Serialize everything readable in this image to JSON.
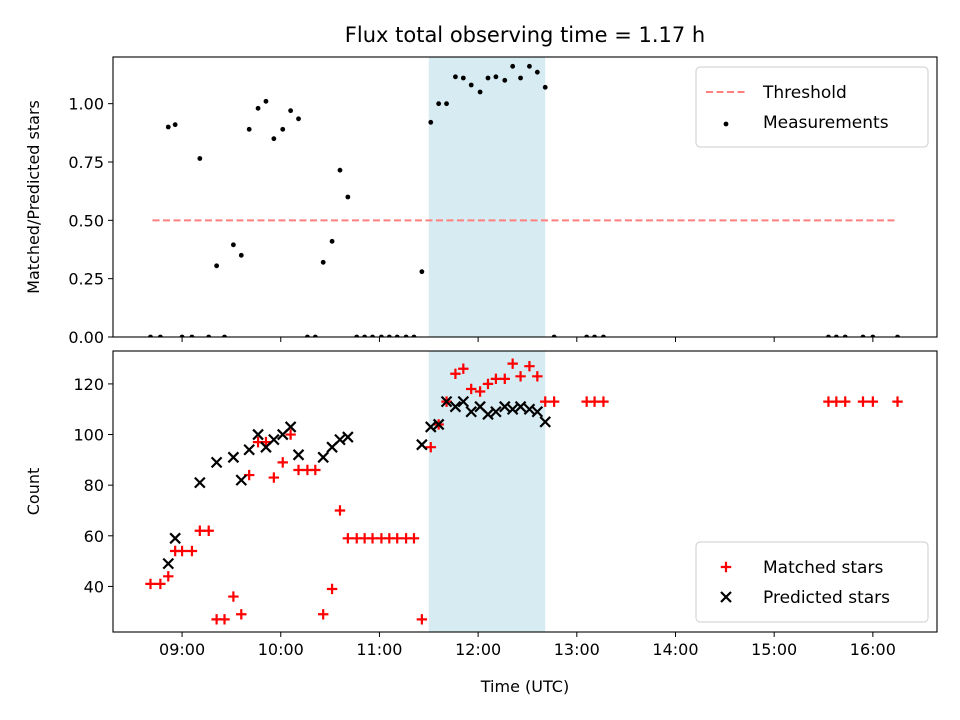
{
  "figure_title": "Flux total observing time = 1.17 h",
  "chart_data": [
    {
      "type": "scatter",
      "panel": "top",
      "title": "Flux total observing time = 1.17 h",
      "ylabel": "Matched/Predicted stars",
      "xlabel": "",
      "xlim": [
        8.3,
        16.65
      ],
      "ylim": [
        0,
        1.2
      ],
      "grid": false,
      "legend_position": "top-right",
      "yticks": [
        0,
        0.25,
        0.5,
        0.75,
        1.0
      ],
      "ytick_labels": [
        "0.00",
        "0.25",
        "0.50",
        "0.75",
        "1.00"
      ],
      "shaded_interval": [
        11.5,
        12.68
      ],
      "shaded_color": "#add8e6",
      "threshold": {
        "name": "Threshold",
        "value": 0.5,
        "x_range": [
          8.7,
          16.25
        ],
        "color": "#ff7f7f",
        "style": "dashed"
      },
      "series": [
        {
          "name": "Measurements",
          "marker": "dot",
          "color": "#000000",
          "points": [
            [
              8.68,
              0
            ],
            [
              8.78,
              0
            ],
            [
              8.86,
              0.9
            ],
            [
              8.93,
              0.91
            ],
            [
              9.0,
              0
            ],
            [
              9.1,
              0
            ],
            [
              9.18,
              0.765
            ],
            [
              9.27,
              0
            ],
            [
              9.35,
              0.305
            ],
            [
              9.43,
              0
            ],
            [
              9.52,
              0.395
            ],
            [
              9.6,
              0.35
            ],
            [
              9.68,
              0.89
            ],
            [
              9.77,
              0.98
            ],
            [
              9.85,
              1.01
            ],
            [
              9.93,
              0.85
            ],
            [
              10.02,
              0.89
            ],
            [
              10.1,
              0.97
            ],
            [
              10.18,
              0.935
            ],
            [
              10.27,
              0
            ],
            [
              10.35,
              0
            ],
            [
              10.43,
              0.32
            ],
            [
              10.52,
              0.41
            ],
            [
              10.6,
              0.715
            ],
            [
              10.68,
              0.6
            ],
            [
              10.77,
              0
            ],
            [
              10.85,
              0
            ],
            [
              10.93,
              0
            ],
            [
              11.02,
              0
            ],
            [
              11.1,
              0
            ],
            [
              11.18,
              0
            ],
            [
              11.27,
              0
            ],
            [
              11.35,
              0
            ],
            [
              11.43,
              0.28
            ],
            [
              11.52,
              0.92
            ],
            [
              11.6,
              1.0
            ],
            [
              11.68,
              1.0
            ],
            [
              11.77,
              1.115
            ],
            [
              11.85,
              1.11
            ],
            [
              11.93,
              1.08
            ],
            [
              12.02,
              1.05
            ],
            [
              12.1,
              1.11
            ],
            [
              12.18,
              1.115
            ],
            [
              12.27,
              1.1
            ],
            [
              12.35,
              1.16
            ],
            [
              12.43,
              1.11
            ],
            [
              12.52,
              1.16
            ],
            [
              12.6,
              1.135
            ],
            [
              12.68,
              1.07
            ],
            [
              12.77,
              0
            ],
            [
              13.1,
              0
            ],
            [
              13.18,
              0
            ],
            [
              13.27,
              0
            ],
            [
              15.55,
              0
            ],
            [
              15.63,
              0
            ],
            [
              15.72,
              0
            ],
            [
              15.9,
              0
            ],
            [
              16.0,
              0
            ],
            [
              16.25,
              0
            ]
          ]
        }
      ]
    },
    {
      "type": "scatter",
      "panel": "bottom",
      "ylabel": "Count",
      "xlabel": "Time (UTC)",
      "xlim": [
        8.3,
        16.65
      ],
      "ylim": [
        22,
        133
      ],
      "grid": false,
      "legend_position": "bottom-right",
      "yticks": [
        40,
        60,
        80,
        100,
        120
      ],
      "ytick_labels": [
        "40",
        "60",
        "80",
        "100",
        "120"
      ],
      "xticks": [
        9,
        10,
        11,
        12,
        13,
        14,
        15,
        16
      ],
      "xtick_labels": [
        "09:00",
        "10:00",
        "11:00",
        "12:00",
        "13:00",
        "14:00",
        "15:00",
        "16:00"
      ],
      "shaded_interval": [
        11.5,
        12.68
      ],
      "shaded_color": "#add8e6",
      "series": [
        {
          "name": "Matched stars",
          "marker": "plus",
          "color": "#ff0000",
          "points": [
            [
              8.68,
              41
            ],
            [
              8.78,
              41
            ],
            [
              8.86,
              44
            ],
            [
              8.93,
              54
            ],
            [
              9.0,
              54
            ],
            [
              9.1,
              54
            ],
            [
              9.18,
              62
            ],
            [
              9.27,
              62
            ],
            [
              9.35,
              27
            ],
            [
              9.43,
              27
            ],
            [
              9.52,
              36
            ],
            [
              9.6,
              29
            ],
            [
              9.68,
              84
            ],
            [
              9.77,
              97
            ],
            [
              9.85,
              97
            ],
            [
              9.93,
              83
            ],
            [
              10.02,
              89
            ],
            [
              10.1,
              100
            ],
            [
              10.18,
              86
            ],
            [
              10.27,
              86
            ],
            [
              10.35,
              86
            ],
            [
              10.43,
              29
            ],
            [
              10.52,
              39
            ],
            [
              10.6,
              70
            ],
            [
              10.68,
              59
            ],
            [
              10.77,
              59
            ],
            [
              10.85,
              59
            ],
            [
              10.93,
              59
            ],
            [
              11.02,
              59
            ],
            [
              11.1,
              59
            ],
            [
              11.18,
              59
            ],
            [
              11.27,
              59
            ],
            [
              11.35,
              59
            ],
            [
              11.43,
              27
            ],
            [
              11.52,
              95
            ],
            [
              11.6,
              104
            ],
            [
              11.68,
              113
            ],
            [
              11.77,
              124
            ],
            [
              11.85,
              126
            ],
            [
              11.93,
              118
            ],
            [
              12.02,
              117
            ],
            [
              12.1,
              120
            ],
            [
              12.18,
              122
            ],
            [
              12.27,
              122
            ],
            [
              12.35,
              128
            ],
            [
              12.43,
              123
            ],
            [
              12.52,
              127
            ],
            [
              12.6,
              123
            ],
            [
              12.68,
              113
            ],
            [
              12.77,
              113
            ],
            [
              13.1,
              113
            ],
            [
              13.18,
              113
            ],
            [
              13.27,
              113
            ],
            [
              15.55,
              113
            ],
            [
              15.63,
              113
            ],
            [
              15.72,
              113
            ],
            [
              15.9,
              113
            ],
            [
              16.0,
              113
            ],
            [
              16.25,
              113
            ]
          ]
        },
        {
          "name": "Predicted stars",
          "marker": "x",
          "color": "#000000",
          "points": [
            [
              8.86,
              49
            ],
            [
              8.93,
              59
            ],
            [
              9.18,
              81
            ],
            [
              9.35,
              89
            ],
            [
              9.52,
              91
            ],
            [
              9.6,
              82
            ],
            [
              9.68,
              94
            ],
            [
              9.77,
              100
            ],
            [
              9.85,
              95
            ],
            [
              9.93,
              98
            ],
            [
              10.02,
              100
            ],
            [
              10.1,
              103
            ],
            [
              10.18,
              92
            ],
            [
              10.43,
              91
            ],
            [
              10.52,
              95
            ],
            [
              10.6,
              98
            ],
            [
              10.68,
              99
            ],
            [
              11.43,
              96
            ],
            [
              11.52,
              103
            ],
            [
              11.6,
              104
            ],
            [
              11.68,
              113
            ],
            [
              11.77,
              111
            ],
            [
              11.85,
              113
            ],
            [
              11.93,
              109
            ],
            [
              12.02,
              111
            ],
            [
              12.1,
              108
            ],
            [
              12.18,
              109
            ],
            [
              12.27,
              111
            ],
            [
              12.35,
              110
            ],
            [
              12.43,
              111
            ],
            [
              12.52,
              110
            ],
            [
              12.6,
              109
            ],
            [
              12.68,
              105
            ]
          ]
        }
      ]
    }
  ]
}
